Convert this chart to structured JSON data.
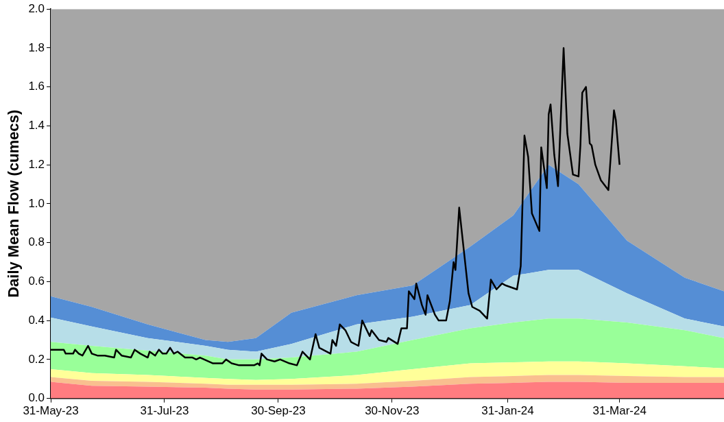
{
  "chart_data": {
    "type": "area",
    "ylabel": "Daily Mean Flow (cumecs)",
    "stacked": true,
    "grid": false,
    "legend": false,
    "marker": "none",
    "x": [
      "2023-05-31",
      "2023-06-22",
      "2023-07-22",
      "2023-08-22",
      "2023-09-03",
      "2023-09-18",
      "2023-10-07",
      "2023-11-11",
      "2023-12-11",
      "2024-01-11",
      "2024-02-03",
      "2024-02-22",
      "2024-03-09",
      "2024-04-04",
      "2024-05-05",
      "2024-05-26"
    ],
    "xlim": [
      "2023-05-31",
      "2024-05-26"
    ],
    "xticks": [
      {
        "value": "2023-05-31",
        "label": "31-May-23"
      },
      {
        "value": "2023-07-31",
        "label": "31-Jul-23"
      },
      {
        "value": "2023-09-30",
        "label": "30-Sep-23"
      },
      {
        "value": "2023-11-30",
        "label": "30-Nov-23"
      },
      {
        "value": "2024-01-31",
        "label": "31-Jan-24"
      },
      {
        "value": "2024-03-31",
        "label": "31-Mar-24"
      }
    ],
    "ylim": [
      0,
      2
    ],
    "yticks": [
      {
        "value": 0,
        "label": "0.0"
      },
      {
        "value": 0.2,
        "label": "0.2"
      },
      {
        "value": 0.4,
        "label": "0.4"
      },
      {
        "value": 0.6,
        "label": "0.6"
      },
      {
        "value": 0.8,
        "label": "0.8"
      },
      {
        "value": 1,
        "label": "1.0"
      },
      {
        "value": 1.2,
        "label": "1.2"
      },
      {
        "value": 1.4,
        "label": "1.4"
      },
      {
        "value": 1.6,
        "label": "1.6"
      },
      {
        "value": 1.8,
        "label": "1.8"
      },
      {
        "value": 2,
        "label": "2.0"
      }
    ],
    "series": [
      {
        "color": "#ff7c80",
        "values": [
          0.085,
          0.065,
          0.06,
          0.055,
          0.05,
          0.045,
          0.045,
          0.05,
          0.06,
          0.075,
          0.08,
          0.085,
          0.085,
          0.08,
          0.08,
          0.08
        ]
      },
      {
        "color": "#f9bf8f",
        "values": [
          0.025,
          0.025,
          0.025,
          0.02,
          0.02,
          0.025,
          0.025,
          0.025,
          0.03,
          0.035,
          0.035,
          0.035,
          0.035,
          0.035,
          0.03,
          0.03
        ]
      },
      {
        "color": "#ffff99",
        "values": [
          0.04,
          0.04,
          0.035,
          0.03,
          0.03,
          0.025,
          0.03,
          0.045,
          0.06,
          0.07,
          0.07,
          0.07,
          0.07,
          0.065,
          0.055,
          0.045
        ]
      },
      {
        "color": "#99ff99",
        "values": [
          0.14,
          0.14,
          0.125,
          0.115,
          0.1,
          0.105,
          0.11,
          0.12,
          0.15,
          0.18,
          0.205,
          0.22,
          0.22,
          0.21,
          0.185,
          0.155
        ]
      },
      {
        "color": "#b7dee8",
        "values": [
          0.125,
          0.1,
          0.065,
          0.05,
          0.05,
          0.04,
          0.07,
          0.14,
          0.12,
          0.12,
          0.24,
          0.25,
          0.25,
          0.15,
          0.06,
          0.06
        ]
      },
      {
        "color": "#558ed5",
        "values": [
          0.11,
          0.1,
          0.07,
          0.03,
          0.04,
          0.07,
          0.16,
          0.15,
          0.16,
          0.3,
          0.31,
          0.54,
          0.44,
          0.27,
          0.21,
          0.18
        ]
      },
      {
        "color": "#a6a6a6",
        "values": [
          1.475,
          1.53,
          1.62,
          1.7,
          1.71,
          1.69,
          1.56,
          1.47,
          1.42,
          1.22,
          1.06,
          0.8,
          0.9,
          1.19,
          1.38,
          1.45
        ]
      },
      {
        "type": "line",
        "color": "#000000",
        "x": [
          "2023-05-31",
          "2023-06-07",
          "2023-06-08",
          "2023-06-12",
          "2023-06-13",
          "2023-06-15",
          "2023-06-17",
          "2023-06-20",
          "2023-06-22",
          "2023-06-25",
          "2023-06-29",
          "2023-07-04",
          "2023-07-05",
          "2023-07-08",
          "2023-07-13",
          "2023-07-15",
          "2023-07-18",
          "2023-07-22",
          "2023-07-23",
          "2023-07-26",
          "2023-07-28",
          "2023-07-30",
          "2023-08-01",
          "2023-08-03",
          "2023-08-05",
          "2023-08-07",
          "2023-08-11",
          "2023-08-15",
          "2023-08-17",
          "2023-08-19",
          "2023-08-26",
          "2023-08-31",
          "2023-09-02",
          "2023-09-05",
          "2023-09-09",
          "2023-09-13",
          "2023-09-17",
          "2023-09-19",
          "2023-09-20",
          "2023-09-21",
          "2023-09-24",
          "2023-09-28",
          "2023-10-01",
          "2023-10-06",
          "2023-10-10",
          "2023-10-13",
          "2023-10-17",
          "2023-10-20",
          "2023-10-22",
          "2023-10-28",
          "2023-10-29",
          "2023-10-31",
          "2023-11-02",
          "2023-11-05",
          "2023-11-08",
          "2023-11-12",
          "2023-11-14",
          "2023-11-18",
          "2023-11-19",
          "2023-11-23",
          "2023-11-27",
          "2023-11-28",
          "2023-12-03",
          "2023-12-05",
          "2023-12-08",
          "2023-12-09",
          "2023-12-12",
          "2023-12-13",
          "2023-12-16",
          "2023-12-18",
          "2023-12-19",
          "2023-12-23",
          "2023-12-25",
          "2023-12-29",
          "2023-12-31",
          "2024-01-02",
          "2024-01-03",
          "2024-01-05",
          "2024-01-10",
          "2024-01-12",
          "2024-01-16",
          "2024-01-20",
          "2024-01-22",
          "2024-01-25",
          "2024-01-28",
          "2024-01-30",
          "2024-02-05",
          "2024-02-07",
          "2024-02-09",
          "2024-02-11",
          "2024-02-13",
          "2024-02-17",
          "2024-02-18",
          "2024-02-21",
          "2024-02-22",
          "2024-02-23",
          "2024-02-25",
          "2024-02-27",
          "2024-03-01",
          "2024-03-03",
          "2024-03-06",
          "2024-03-09",
          "2024-03-10",
          "2024-03-11",
          "2024-03-13",
          "2024-03-15",
          "2024-03-16",
          "2024-03-18",
          "2024-03-21",
          "2024-03-25",
          "2024-03-28",
          "2024-03-29",
          "2024-03-31"
        ],
        "values": [
          0.25,
          0.25,
          0.23,
          0.23,
          0.25,
          0.23,
          0.22,
          0.27,
          0.23,
          0.22,
          0.22,
          0.21,
          0.25,
          0.22,
          0.21,
          0.25,
          0.23,
          0.21,
          0.24,
          0.22,
          0.25,
          0.23,
          0.23,
          0.26,
          0.23,
          0.24,
          0.21,
          0.21,
          0.2,
          0.21,
          0.18,
          0.18,
          0.2,
          0.18,
          0.17,
          0.17,
          0.17,
          0.18,
          0.17,
          0.23,
          0.2,
          0.19,
          0.2,
          0.18,
          0.17,
          0.24,
          0.2,
          0.33,
          0.26,
          0.23,
          0.3,
          0.27,
          0.38,
          0.35,
          0.29,
          0.27,
          0.4,
          0.32,
          0.35,
          0.3,
          0.29,
          0.31,
          0.28,
          0.36,
          0.36,
          0.55,
          0.51,
          0.59,
          0.48,
          0.43,
          0.53,
          0.43,
          0.4,
          0.4,
          0.5,
          0.7,
          0.66,
          0.98,
          0.54,
          0.47,
          0.45,
          0.41,
          0.61,
          0.56,
          0.59,
          0.58,
          0.56,
          0.68,
          1.35,
          1.24,
          0.95,
          0.86,
          1.29,
          1.08,
          1.46,
          1.51,
          1.25,
          1.09,
          1.8,
          1.36,
          1.15,
          1.14,
          1.3,
          1.57,
          1.6,
          1.31,
          1.3,
          1.2,
          1.12,
          1.07,
          1.48,
          1.43,
          1.2
        ]
      }
    ]
  }
}
